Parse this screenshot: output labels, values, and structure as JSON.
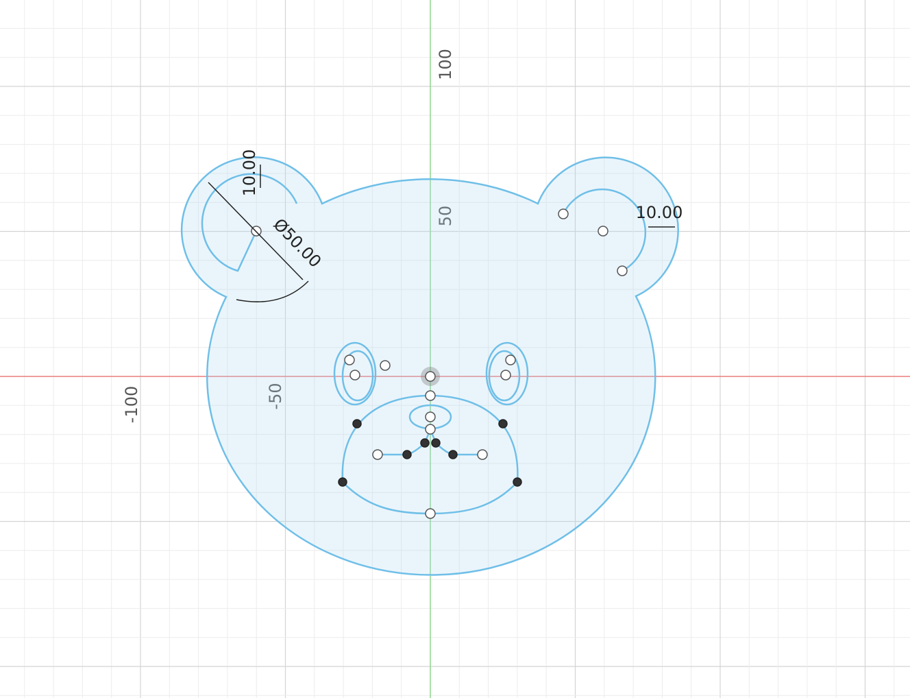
{
  "viewport": {
    "axis_labels": {
      "horizontal": [
        "-100",
        "-50"
      ],
      "vertical": [
        "50",
        "100"
      ]
    },
    "dimensions": {
      "left_ear_offset": "10.00",
      "left_ear_diameter": "Ø50.00",
      "right_ear_offset": "10.00"
    }
  }
}
